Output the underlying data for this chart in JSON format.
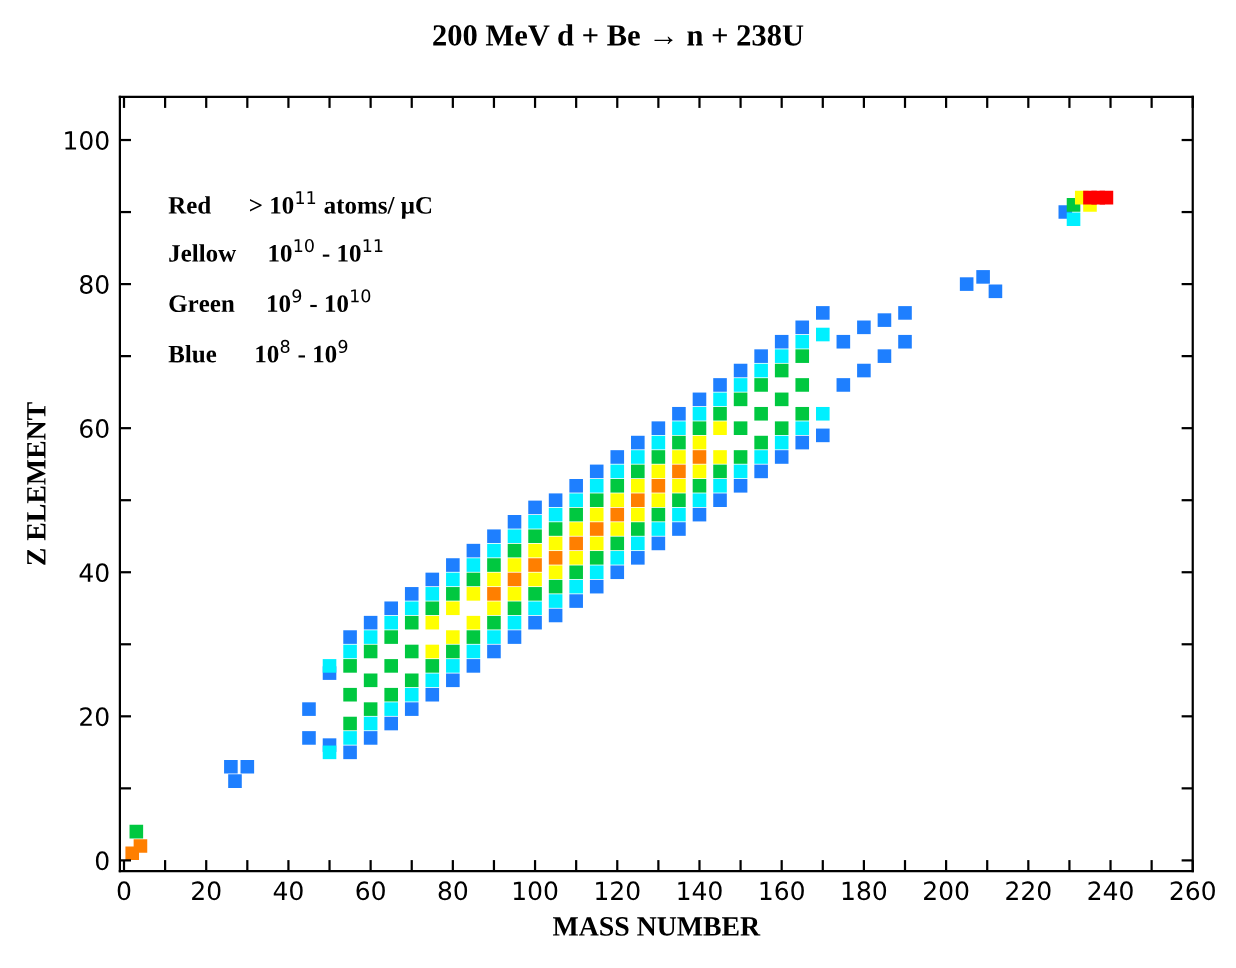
{
  "chart_data": {
    "type": "scatter",
    "title": "200 MeV d + Be → n + 238U",
    "xlabel": "MASS NUMBER",
    "ylabel": "Z ELEMENT",
    "annotations": [
      "Red      > 10$^{11}$ atoms/ μC",
      "Jellow     10$^{10}$ - 10$^{11}$",
      "Green     10$^{9}$ - 10$^{10}$",
      "Blue      10$^{8}$ - 10$^{9}$"
    ],
    "marker": "square",
    "grid": false,
    "legend": false,
    "xlim": [
      -1,
      260
    ],
    "ylim": [
      -1.5,
      106
    ],
    "xticks": [
      0,
      {
        "value": 10,
        "label": null
      },
      20,
      {
        "value": 30,
        "label": null
      },
      40,
      {
        "value": 50,
        "label": null
      },
      60,
      {
        "value": 70,
        "label": null
      },
      80,
      {
        "value": 90,
        "label": null
      },
      100,
      {
        "value": 110,
        "label": null
      },
      120,
      {
        "value": 130,
        "label": null
      },
      140,
      {
        "value": 150,
        "label": null
      },
      160,
      {
        "value": 170,
        "label": null
      },
      180,
      {
        "value": 190,
        "label": null
      },
      200,
      {
        "value": 210,
        "label": null
      },
      220,
      {
        "value": 230,
        "label": null
      },
      240,
      {
        "value": 250,
        "label": null
      },
      260
    ],
    "yticks": [
      0,
      {
        "value": 10,
        "label": null
      },
      20,
      {
        "value": 30,
        "label": null
      },
      40,
      {
        "value": 50,
        "label": null
      },
      60,
      {
        "value": 70,
        "label": null
      },
      80,
      {
        "value": 90,
        "label": null
      },
      100
    ],
    "series": [
      {
        "color": "#1e7fff",
        "x": [
          45,
          45,
          50,
          50,
          55,
          55,
          60,
          60,
          65,
          65,
          70,
          70,
          75,
          75,
          80,
          80,
          85,
          85,
          90,
          90,
          95,
          95,
          100,
          100,
          105,
          105,
          110,
          110,
          115,
          115,
          120,
          120,
          125,
          125,
          130,
          130,
          135,
          135,
          140,
          140,
          145,
          145,
          150,
          150,
          155,
          155,
          160,
          160,
          165,
          165,
          170,
          170,
          175,
          175,
          180,
          180,
          185,
          185,
          190,
          190,
          26,
          27,
          30,
          205,
          209,
          212,
          229
        ],
        "values": [
          17,
          21,
          16,
          26,
          15,
          31,
          17,
          33,
          19,
          35,
          21,
          37,
          23,
          39,
          25,
          41,
          27,
          43,
          29,
          45,
          31,
          47,
          33,
          49,
          34,
          50,
          36,
          52,
          38,
          54,
          40,
          56,
          42,
          58,
          44,
          60,
          46,
          62,
          48,
          64,
          50,
          66,
          52,
          68,
          54,
          70,
          56,
          72,
          58,
          74,
          59,
          76,
          66,
          72,
          68,
          74,
          70,
          75,
          72,
          76,
          13,
          11,
          13,
          80,
          81,
          79,
          90
        ]
      },
      {
        "color": "#00f0ff",
        "x": [
          50,
          50,
          55,
          55,
          60,
          60,
          65,
          65,
          70,
          70,
          75,
          75,
          80,
          80,
          85,
          85,
          90,
          90,
          95,
          95,
          100,
          100,
          105,
          105,
          110,
          110,
          115,
          115,
          120,
          120,
          125,
          125,
          130,
          130,
          135,
          135,
          140,
          140,
          145,
          145,
          150,
          150,
          155,
          155,
          160,
          160,
          165,
          165,
          170,
          170,
          231
        ],
        "values": [
          15,
          27,
          17,
          29,
          19,
          31,
          21,
          33,
          23,
          35,
          25,
          37,
          27,
          39,
          29,
          41,
          31,
          43,
          33,
          45,
          35,
          47,
          36,
          48,
          38,
          50,
          40,
          52,
          42,
          54,
          44,
          56,
          46,
          58,
          48,
          60,
          50,
          62,
          52,
          64,
          54,
          66,
          56,
          68,
          58,
          70,
          60,
          72,
          62,
          73,
          89
        ]
      },
      {
        "color": "#00c840",
        "x": [
          55,
          55,
          60,
          60,
          65,
          65,
          70,
          70,
          75,
          75,
          80,
          80,
          85,
          85,
          90,
          90,
          95,
          95,
          100,
          100,
          105,
          105,
          110,
          110,
          115,
          115,
          120,
          120,
          125,
          125,
          130,
          130,
          135,
          135,
          140,
          140,
          145,
          145,
          150,
          150,
          155,
          155,
          160,
          160,
          165,
          165,
          55,
          60,
          65,
          70,
          150,
          155,
          160,
          165,
          231,
          3
        ],
        "values": [
          19,
          27,
          21,
          29,
          23,
          31,
          25,
          33,
          27,
          35,
          29,
          37,
          31,
          39,
          33,
          41,
          35,
          43,
          37,
          45,
          38,
          46,
          40,
          48,
          42,
          50,
          44,
          52,
          46,
          54,
          48,
          56,
          50,
          58,
          52,
          60,
          54,
          62,
          56,
          64,
          58,
          66,
          60,
          68,
          62,
          70,
          23,
          25,
          27,
          29,
          60,
          62,
          64,
          66,
          91,
          4
        ]
      },
      {
        "color": "#ffff00",
        "x": [
          75,
          75,
          80,
          80,
          85,
          85,
          90,
          90,
          95,
          95,
          100,
          100,
          105,
          105,
          110,
          110,
          115,
          115,
          120,
          120,
          125,
          125,
          130,
          130,
          135,
          135,
          140,
          140,
          145,
          145,
          233,
          235
        ],
        "values": [
          29,
          33,
          31,
          35,
          33,
          37,
          35,
          39,
          37,
          41,
          39,
          43,
          40,
          44,
          42,
          46,
          44,
          48,
          46,
          50,
          48,
          52,
          50,
          54,
          52,
          56,
          54,
          58,
          56,
          60,
          92,
          91
        ]
      },
      {
        "color": "#ff7f00",
        "x": [
          90,
          95,
          100,
          105,
          110,
          115,
          120,
          125,
          130,
          135,
          140,
          2,
          4
        ],
        "values": [
          37,
          39,
          41,
          42,
          44,
          46,
          48,
          50,
          52,
          54,
          56,
          1,
          2
        ]
      },
      {
        "color": "#ff0000",
        "x": [
          235,
          237,
          239
        ],
        "values": [
          92,
          92,
          92
        ]
      }
    ]
  }
}
